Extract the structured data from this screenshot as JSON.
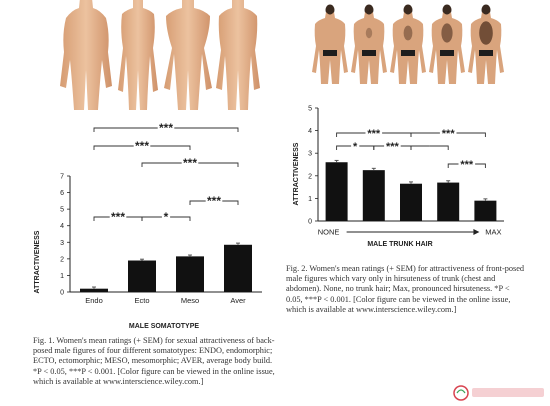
{
  "fig1": {
    "caption": "Fig. 1.  Women's mean ratings (+ SEM) for sexual attractiveness of back-posed male figures of four different somatotypes: ENDO, endomorphic; ECTO, ectomorphic; MESO, mesomorphic; AVER, average body build. *P < 0.05, ***P < 0.001. [Color figure can be viewed in the online issue, which is available at www.interscience.wiley.com.]",
    "figures": [
      "endomorph-back-figure",
      "ectomorph-back-figure",
      "mesomorph-back-figure",
      "average-back-figure"
    ]
  },
  "fig2": {
    "caption": "Fig. 2.  Women's mean ratings (+ SEM) for attractiveness of front-posed male figures which vary only in hirsuteness of trunk (chest and abdomen). None, no trunk hair; Max, pronounced hirsuteness. *P < 0.05, ***P < 0.001. [Color figure can be viewed in the online issue, which is available at www.interscience.wiley.com.]",
    "figures": [
      "hair-level-1-figure",
      "hair-level-2-figure",
      "hair-level-3-figure",
      "hair-level-4-figure",
      "hair-level-5-figure"
    ]
  },
  "chart_data": [
    {
      "type": "bar",
      "categories": [
        "Endo",
        "Ecto",
        "Meso",
        "Aver"
      ],
      "values": [
        0.2,
        1.9,
        2.15,
        2.85
      ],
      "errors": [
        0.1,
        0.08,
        0.08,
        0.1
      ],
      "xlabel": "MALE SOMATOTYPE",
      "ylabel": "ATTRACTIVENESS",
      "ylim": [
        0,
        7
      ],
      "yticks": [
        0,
        1,
        2,
        3,
        4,
        5,
        6,
        7
      ],
      "grid": false,
      "significance": [
        {
          "pair": [
            "Endo",
            "Ecto"
          ],
          "label": "***"
        },
        {
          "pair": [
            "Ecto",
            "Meso"
          ],
          "label": "*"
        },
        {
          "pair": [
            "Meso",
            "Aver"
          ],
          "label": "***"
        },
        {
          "pair": [
            "Ecto",
            "Aver"
          ],
          "label": "***"
        },
        {
          "pair": [
            "Endo",
            "Meso"
          ],
          "label": "***"
        },
        {
          "pair": [
            "Endo",
            "Aver"
          ],
          "label": "***"
        }
      ]
    },
    {
      "type": "bar",
      "categories": [
        "NONE",
        "",
        "",
        "",
        "MAX"
      ],
      "values": [
        2.6,
        2.25,
        1.65,
        1.7,
        0.9
      ],
      "errors": [
        0.08,
        0.08,
        0.08,
        0.08,
        0.08
      ],
      "xlabel": "MALE TRUNK HAIR",
      "ylabel": "ATTRACTIVENESS",
      "ylim": [
        0,
        5
      ],
      "yticks": [
        0,
        1,
        2,
        3,
        4,
        5
      ],
      "grid": false,
      "significance": [
        {
          "pair": [
            0,
            1
          ],
          "label": "*"
        },
        {
          "pair": [
            1,
            2
          ],
          "label": "***"
        },
        {
          "pair": [
            2,
            3
          ],
          "label": ""
        },
        {
          "pair": [
            3,
            4
          ],
          "label": "***"
        },
        {
          "pair": [
            0,
            2
          ],
          "label": "***"
        },
        {
          "pair": [
            2,
            4
          ],
          "label": "***"
        }
      ]
    }
  ]
}
